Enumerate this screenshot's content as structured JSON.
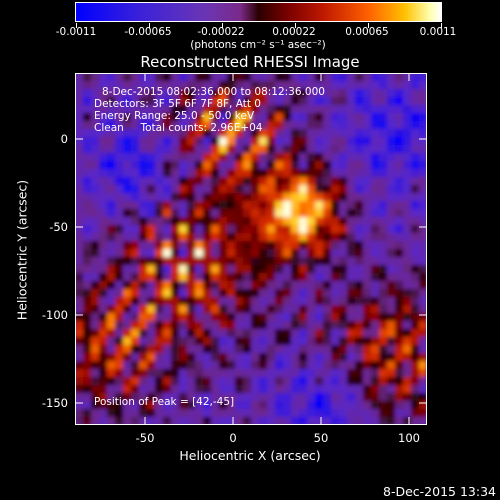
{
  "colorbar": {
    "tick_labels": [
      "-0.0011",
      "-0.00065",
      "-0.00022",
      "0.00022",
      "0.00065",
      "0.0011"
    ],
    "units": "(photons cm⁻² s⁻¹ asec⁻²)"
  },
  "title": "Reconstructed RHESSI Image",
  "info": {
    "time_range": "8-Dec-2015 08:02:36.000 to 08:12:36.000",
    "detectors": "Detectors: 3F 5F 6F 7F 8F, Att 0",
    "energy": "Energy Range: 25.0 - 50.0 keV",
    "clean": "Clean     Total counts: 2.96E+04",
    "peak": "Position of Peak = [42,-45]"
  },
  "axes": {
    "xlabel": "Heliocentric X (arcsec)",
    "ylabel": "Heliocentric Y (arcsec)",
    "x_ticks": [
      "-50",
      "0",
      "50",
      "100"
    ],
    "y_ticks": [
      "0",
      "-50",
      "-100",
      "-150"
    ]
  },
  "timestamp": "8-Dec-2015 13:34"
}
